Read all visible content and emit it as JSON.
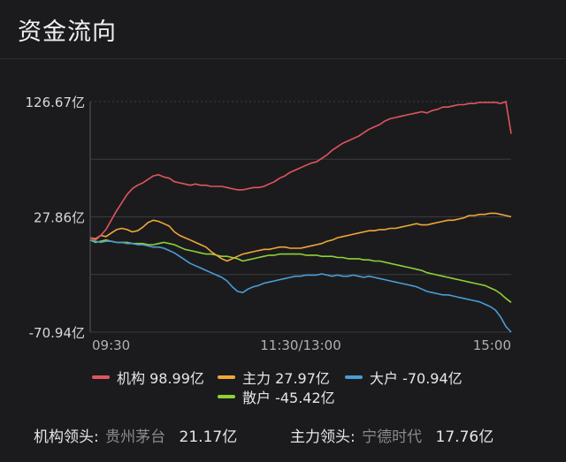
{
  "header": {
    "title": "资金流向"
  },
  "chart_data": {
    "type": "line",
    "title": "",
    "xlabel": "",
    "ylabel": "",
    "y_tick_labels": [
      "126.67亿",
      "27.86亿",
      "-70.94亿"
    ],
    "y_ticks": [
      126.67,
      27.86,
      -70.94
    ],
    "ylim": [
      -70.94,
      126.67
    ],
    "x_tick_labels": [
      "09:30",
      "11:30/13:00",
      "15:00"
    ],
    "x_ticks": [
      0,
      120,
      240
    ],
    "xlim": [
      0,
      240
    ],
    "grid": true,
    "legend_position": "bottom",
    "series": [
      {
        "name": "机构 98.99亿",
        "color": "#e0555d",
        "points": [
          [
            0,
            10
          ],
          [
            3,
            8
          ],
          [
            6,
            12
          ],
          [
            9,
            17
          ],
          [
            12,
            25
          ],
          [
            15,
            33
          ],
          [
            18,
            40
          ],
          [
            21,
            47
          ],
          [
            24,
            52
          ],
          [
            27,
            55
          ],
          [
            30,
            57
          ],
          [
            33,
            60
          ],
          [
            36,
            63
          ],
          [
            39,
            64
          ],
          [
            42,
            62
          ],
          [
            45,
            61
          ],
          [
            48,
            58
          ],
          [
            51,
            57
          ],
          [
            54,
            56
          ],
          [
            57,
            55
          ],
          [
            60,
            56
          ],
          [
            63,
            55
          ],
          [
            66,
            55
          ],
          [
            69,
            54
          ],
          [
            72,
            54
          ],
          [
            75,
            54
          ],
          [
            78,
            53
          ],
          [
            81,
            52
          ],
          [
            84,
            51
          ],
          [
            87,
            51
          ],
          [
            90,
            52
          ],
          [
            93,
            53
          ],
          [
            96,
            53
          ],
          [
            99,
            54
          ],
          [
            102,
            56
          ],
          [
            105,
            58
          ],
          [
            108,
            61
          ],
          [
            111,
            63
          ],
          [
            114,
            66
          ],
          [
            117,
            68
          ],
          [
            120,
            70
          ],
          [
            123,
            72
          ],
          [
            126,
            74
          ],
          [
            129,
            75
          ],
          [
            132,
            78
          ],
          [
            135,
            81
          ],
          [
            138,
            85
          ],
          [
            141,
            88
          ],
          [
            144,
            91
          ],
          [
            147,
            93
          ],
          [
            150,
            95
          ],
          [
            153,
            97
          ],
          [
            156,
            100
          ],
          [
            159,
            103
          ],
          [
            162,
            105
          ],
          [
            165,
            107
          ],
          [
            168,
            110
          ],
          [
            171,
            112
          ],
          [
            174,
            113
          ],
          [
            177,
            114
          ],
          [
            180,
            115
          ],
          [
            183,
            116
          ],
          [
            186,
            117
          ],
          [
            189,
            118
          ],
          [
            192,
            117
          ],
          [
            195,
            119
          ],
          [
            198,
            120
          ],
          [
            201,
            122
          ],
          [
            204,
            122
          ],
          [
            207,
            123
          ],
          [
            210,
            124
          ],
          [
            213,
            124
          ],
          [
            216,
            125
          ],
          [
            219,
            125
          ],
          [
            222,
            126
          ],
          [
            225,
            126
          ],
          [
            228,
            126
          ],
          [
            231,
            126
          ],
          [
            234,
            125
          ],
          [
            237,
            126.67
          ],
          [
            240,
            99
          ]
        ]
      },
      {
        "name": "主力 27.97亿",
        "color": "#f0a736",
        "points": [
          [
            0,
            10
          ],
          [
            3,
            9
          ],
          [
            6,
            12
          ],
          [
            9,
            11
          ],
          [
            12,
            14
          ],
          [
            15,
            17
          ],
          [
            18,
            18
          ],
          [
            21,
            17
          ],
          [
            24,
            15
          ],
          [
            27,
            16
          ],
          [
            30,
            19
          ],
          [
            33,
            23
          ],
          [
            36,
            25
          ],
          [
            39,
            24
          ],
          [
            42,
            22
          ],
          [
            45,
            20
          ],
          [
            48,
            15
          ],
          [
            51,
            12
          ],
          [
            54,
            10
          ],
          [
            57,
            8
          ],
          [
            60,
            6
          ],
          [
            63,
            4
          ],
          [
            66,
            2
          ],
          [
            69,
            -2
          ],
          [
            72,
            -5
          ],
          [
            75,
            -8
          ],
          [
            78,
            -10
          ],
          [
            81,
            -8
          ],
          [
            84,
            -6
          ],
          [
            87,
            -4
          ],
          [
            90,
            -3
          ],
          [
            93,
            -2
          ],
          [
            96,
            -1
          ],
          [
            99,
            0
          ],
          [
            102,
            0
          ],
          [
            105,
            1
          ],
          [
            108,
            2
          ],
          [
            111,
            2
          ],
          [
            114,
            1
          ],
          [
            117,
            1
          ],
          [
            120,
            1
          ],
          [
            123,
            2
          ],
          [
            126,
            3
          ],
          [
            129,
            4
          ],
          [
            132,
            5
          ],
          [
            135,
            7
          ],
          [
            138,
            8
          ],
          [
            141,
            10
          ],
          [
            144,
            11
          ],
          [
            147,
            12
          ],
          [
            150,
            13
          ],
          [
            153,
            14
          ],
          [
            156,
            15
          ],
          [
            159,
            16
          ],
          [
            162,
            16
          ],
          [
            165,
            17
          ],
          [
            168,
            17
          ],
          [
            171,
            18
          ],
          [
            174,
            18
          ],
          [
            177,
            19
          ],
          [
            180,
            20
          ],
          [
            183,
            21
          ],
          [
            186,
            22
          ],
          [
            189,
            21
          ],
          [
            192,
            21
          ],
          [
            195,
            22
          ],
          [
            198,
            23
          ],
          [
            201,
            24
          ],
          [
            204,
            25
          ],
          [
            207,
            25
          ],
          [
            210,
            26
          ],
          [
            213,
            27
          ],
          [
            216,
            29
          ],
          [
            219,
            29
          ],
          [
            222,
            30
          ],
          [
            225,
            30
          ],
          [
            228,
            31
          ],
          [
            231,
            31
          ],
          [
            234,
            30
          ],
          [
            237,
            29
          ],
          [
            240,
            27.97
          ]
        ]
      },
      {
        "name": "大户 -70.94亿",
        "color": "#4b9cd6",
        "points": [
          [
            0,
            8
          ],
          [
            3,
            7
          ],
          [
            6,
            6
          ],
          [
            9,
            7
          ],
          [
            12,
            7
          ],
          [
            15,
            6
          ],
          [
            18,
            6
          ],
          [
            21,
            5
          ],
          [
            24,
            5
          ],
          [
            27,
            4
          ],
          [
            30,
            4
          ],
          [
            33,
            3
          ],
          [
            36,
            2
          ],
          [
            39,
            2
          ],
          [
            42,
            1
          ],
          [
            45,
            -1
          ],
          [
            48,
            -3
          ],
          [
            51,
            -6
          ],
          [
            54,
            -9
          ],
          [
            57,
            -12
          ],
          [
            60,
            -14
          ],
          [
            63,
            -16
          ],
          [
            66,
            -18
          ],
          [
            69,
            -20
          ],
          [
            72,
            -22
          ],
          [
            75,
            -24
          ],
          [
            78,
            -27
          ],
          [
            81,
            -32
          ],
          [
            84,
            -36
          ],
          [
            87,
            -37
          ],
          [
            90,
            -34
          ],
          [
            93,
            -32
          ],
          [
            96,
            -31
          ],
          [
            99,
            -29
          ],
          [
            102,
            -28
          ],
          [
            105,
            -27
          ],
          [
            108,
            -26
          ],
          [
            111,
            -25
          ],
          [
            114,
            -24
          ],
          [
            117,
            -23
          ],
          [
            120,
            -23
          ],
          [
            123,
            -22
          ],
          [
            126,
            -22
          ],
          [
            129,
            -22
          ],
          [
            132,
            -21
          ],
          [
            135,
            -22
          ],
          [
            138,
            -23
          ],
          [
            141,
            -22
          ],
          [
            144,
            -23
          ],
          [
            147,
            -23
          ],
          [
            150,
            -22
          ],
          [
            153,
            -23
          ],
          [
            156,
            -24
          ],
          [
            159,
            -23
          ],
          [
            162,
            -24
          ],
          [
            165,
            -25
          ],
          [
            168,
            -26
          ],
          [
            171,
            -27
          ],
          [
            174,
            -28
          ],
          [
            177,
            -29
          ],
          [
            180,
            -30
          ],
          [
            183,
            -31
          ],
          [
            186,
            -32
          ],
          [
            189,
            -34
          ],
          [
            192,
            -36
          ],
          [
            195,
            -37
          ],
          [
            198,
            -38
          ],
          [
            201,
            -39
          ],
          [
            204,
            -39
          ],
          [
            207,
            -40
          ],
          [
            210,
            -41
          ],
          [
            213,
            -42
          ],
          [
            216,
            -43
          ],
          [
            219,
            -44
          ],
          [
            222,
            -45
          ],
          [
            225,
            -47
          ],
          [
            228,
            -49
          ],
          [
            231,
            -52
          ],
          [
            234,
            -58
          ],
          [
            237,
            -66
          ],
          [
            240,
            -70.94
          ]
        ]
      },
      {
        "name": "散户 -45.42亿",
        "color": "#8fd134",
        "points": [
          [
            0,
            8
          ],
          [
            3,
            6
          ],
          [
            6,
            7
          ],
          [
            9,
            8
          ],
          [
            12,
            7
          ],
          [
            15,
            6
          ],
          [
            18,
            6
          ],
          [
            21,
            6
          ],
          [
            24,
            5
          ],
          [
            27,
            5
          ],
          [
            30,
            5
          ],
          [
            33,
            4
          ],
          [
            36,
            4
          ],
          [
            39,
            5
          ],
          [
            42,
            6
          ],
          [
            45,
            5
          ],
          [
            48,
            4
          ],
          [
            51,
            2
          ],
          [
            54,
            0
          ],
          [
            57,
            -1
          ],
          [
            60,
            -2
          ],
          [
            63,
            -3
          ],
          [
            66,
            -4
          ],
          [
            69,
            -4
          ],
          [
            72,
            -5
          ],
          [
            75,
            -6
          ],
          [
            78,
            -6
          ],
          [
            81,
            -7
          ],
          [
            84,
            -8
          ],
          [
            87,
            -10
          ],
          [
            90,
            -9
          ],
          [
            93,
            -8
          ],
          [
            96,
            -7
          ],
          [
            99,
            -6
          ],
          [
            102,
            -5
          ],
          [
            105,
            -5
          ],
          [
            108,
            -4
          ],
          [
            111,
            -4
          ],
          [
            114,
            -4
          ],
          [
            117,
            -4
          ],
          [
            120,
            -4
          ],
          [
            123,
            -5
          ],
          [
            126,
            -5
          ],
          [
            129,
            -5
          ],
          [
            132,
            -6
          ],
          [
            135,
            -6
          ],
          [
            138,
            -6
          ],
          [
            141,
            -7
          ],
          [
            144,
            -7
          ],
          [
            147,
            -8
          ],
          [
            150,
            -8
          ],
          [
            153,
            -8
          ],
          [
            156,
            -9
          ],
          [
            159,
            -9
          ],
          [
            162,
            -10
          ],
          [
            165,
            -10
          ],
          [
            168,
            -11
          ],
          [
            171,
            -12
          ],
          [
            174,
            -13
          ],
          [
            177,
            -14
          ],
          [
            180,
            -15
          ],
          [
            183,
            -16
          ],
          [
            186,
            -17
          ],
          [
            189,
            -18
          ],
          [
            192,
            -20
          ],
          [
            195,
            -21
          ],
          [
            198,
            -22
          ],
          [
            201,
            -23
          ],
          [
            204,
            -24
          ],
          [
            207,
            -25
          ],
          [
            210,
            -26
          ],
          [
            213,
            -27
          ],
          [
            216,
            -28
          ],
          [
            219,
            -29
          ],
          [
            222,
            -30
          ],
          [
            225,
            -31
          ],
          [
            228,
            -33
          ],
          [
            231,
            -35
          ],
          [
            234,
            -38
          ],
          [
            237,
            -42
          ],
          [
            240,
            -45.42
          ]
        ]
      }
    ]
  },
  "legend": [
    {
      "label": "机构 98.99亿",
      "color": "#e0555d"
    },
    {
      "label": "主力 27.97亿",
      "color": "#f0a736"
    },
    {
      "label": "大户 -70.94亿",
      "color": "#4b9cd6"
    },
    {
      "label": "散户 -45.42亿",
      "color": "#8fd134"
    }
  ],
  "leaders": [
    {
      "label": "机构领头:",
      "stock": "贵州茅台",
      "value": "21.17亿"
    },
    {
      "label": "主力领头:",
      "stock": "宁德时代",
      "value": "17.76亿"
    }
  ]
}
